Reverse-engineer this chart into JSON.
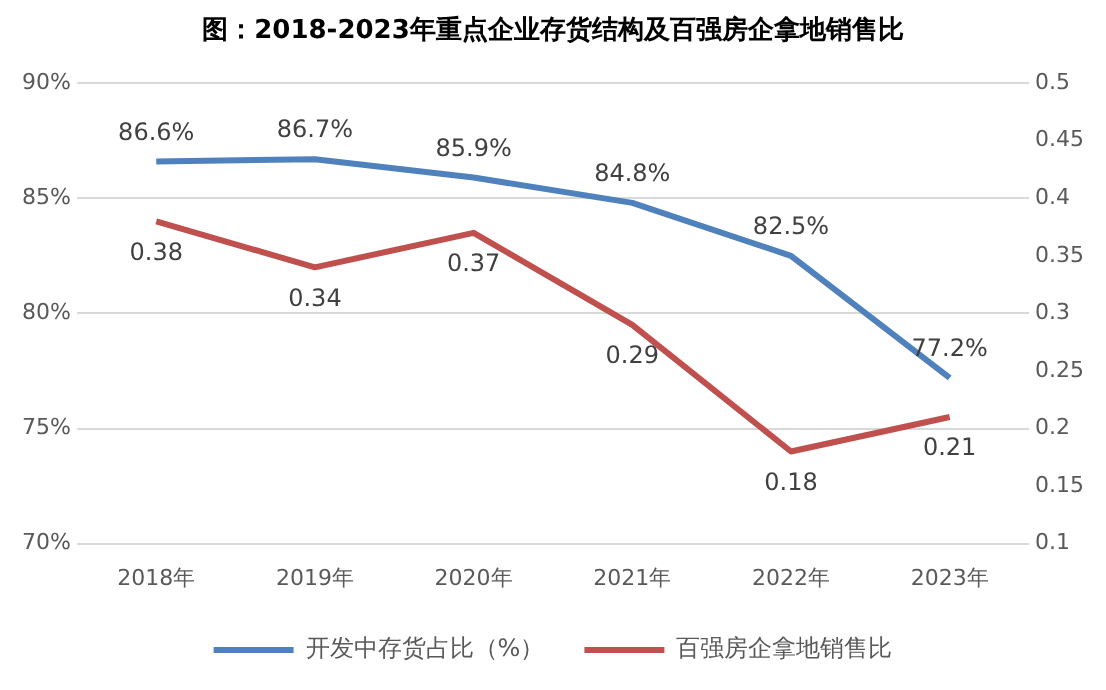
{
  "chart_data": {
    "type": "line",
    "title": "图：2018-2023年重点企业存货结构及百强房企拿地销售比",
    "categories": [
      "2018年",
      "2019年",
      "2020年",
      "2021年",
      "2022年",
      "2023年"
    ],
    "series": [
      {
        "name": "开发中存货占比（%）",
        "color": "#4f81bd",
        "values": [
          86.6,
          86.7,
          85.9,
          84.8,
          82.5,
          77.2
        ],
        "value_labels": [
          "86.6%",
          "86.7%",
          "85.9%",
          "84.8%",
          "82.5%",
          "77.2%"
        ]
      },
      {
        "name": "百强房企拿地销售比",
        "color": "#c0504d",
        "axis": "y2",
        "values": [
          0.38,
          0.34,
          0.37,
          0.29,
          0.18,
          0.21
        ],
        "value_labels": [
          "0.38",
          "0.34",
          "0.37",
          "0.29",
          "0.18",
          "0.21"
        ]
      }
    ],
    "ylim": [
      70,
      90
    ],
    "yticks": [
      {
        "value": 70,
        "label": "70%"
      },
      {
        "value": 75,
        "label": "75%"
      },
      {
        "value": 80,
        "label": "80%"
      },
      {
        "value": 85,
        "label": "85%"
      },
      {
        "value": 90,
        "label": "90%"
      }
    ],
    "y2lim": [
      0.1,
      0.5
    ],
    "y2ticks": [
      0.1,
      0.15,
      0.2,
      0.25,
      0.3,
      0.35,
      0.4,
      0.45,
      0.5
    ],
    "grid": "y",
    "legend": "bottom",
    "marker": "none",
    "line_style": "solid"
  }
}
